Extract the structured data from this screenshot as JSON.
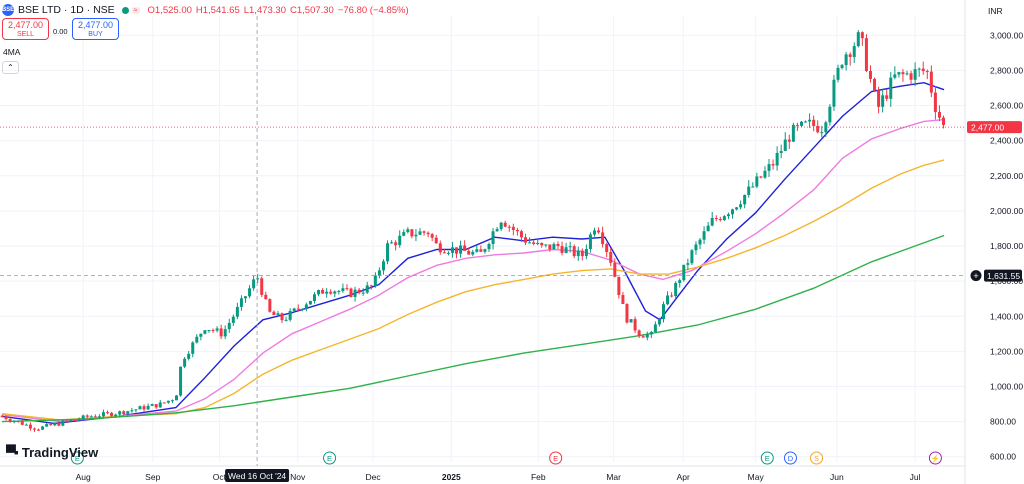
{
  "header": {
    "symbol": "BSE LTD · 1D · NSE",
    "open": "O1,525.00",
    "high": "H1,541.65",
    "low": "L1,473.30",
    "close": "C1,507.30",
    "change": "−76.80 (−4.85%)"
  },
  "trade": {
    "sell_price": "2,477.00",
    "sell_label": "SELL",
    "spread": "0.00",
    "buy_price": "2,477.00",
    "buy_label": "BUY"
  },
  "indicator_label": "4MA",
  "collapse_glyph": "⌃",
  "currency": "INR",
  "brand": "TradingView",
  "crosshair": {
    "date_label": "Wed 16 Oct '24",
    "price_label": "1,631.55",
    "price": 1631.55
  },
  "last_price_label": "2,477.00",
  "colors": {
    "up": "#089981",
    "down": "#f23645",
    "ma_blue": "#1d22d8",
    "ma_pink": "#f07be0",
    "ma_orange": "#f5b52e",
    "ma_green": "#2fb14a",
    "grid": "#f0f3fa"
  },
  "chart_data": {
    "type": "candlestick",
    "title": "",
    "ylim": [
      570,
      3110
    ],
    "y_ticks": [
      600,
      800,
      1000,
      1200,
      1400,
      1600,
      1800,
      2000,
      2200,
      2400,
      2600,
      2800,
      3000
    ],
    "y_tick_labels": [
      "600.00",
      "800.00",
      "1,000.00",
      "1,200.00",
      "1,400.00",
      "1,600.00",
      "1,800.00",
      "2,000.00",
      "2,200.00",
      "2,400.00",
      "2,600.00",
      "2,800.00",
      "3,000.00"
    ],
    "x_ticks": [
      {
        "day": 28,
        "label": "Aug"
      },
      {
        "day": 52,
        "label": "Sep"
      },
      {
        "day": 75,
        "label": "Oct"
      },
      {
        "day": 102,
        "label": "Nov"
      },
      {
        "day": 128,
        "label": "Dec"
      },
      {
        "day": 155,
        "label": "2025"
      },
      {
        "day": 185,
        "label": "Feb"
      },
      {
        "day": 211,
        "label": "Mar"
      },
      {
        "day": 235,
        "label": "Apr"
      },
      {
        "day": 260,
        "label": "May"
      },
      {
        "day": 288,
        "label": "Jun"
      },
      {
        "day": 315,
        "label": "Jul"
      }
    ],
    "crosshair_day": 88,
    "last_price": 2477,
    "events": [
      {
        "day": 26,
        "label": "E",
        "color": "#089981"
      },
      {
        "day": 113,
        "label": "E",
        "color": "#089981"
      },
      {
        "day": 191,
        "label": "E",
        "color": "#f23645"
      },
      {
        "day": 264,
        "label": "E",
        "color": "#089981"
      },
      {
        "day": 272,
        "label": "D",
        "color": "#2962ff"
      },
      {
        "day": 281,
        "label": "S",
        "color": "#f5a623"
      },
      {
        "day": 322,
        "label": "⚡",
        "color": "#9c27b0"
      }
    ],
    "price_path": [
      [
        0,
        830
      ],
      [
        12,
        760
      ],
      [
        20,
        790
      ],
      [
        30,
        830
      ],
      [
        40,
        850
      ],
      [
        55,
        900
      ],
      [
        60,
        940
      ],
      [
        62,
        1150
      ],
      [
        70,
        1340
      ],
      [
        76,
        1300
      ],
      [
        82,
        1460
      ],
      [
        88,
        1630
      ],
      [
        92,
        1420
      ],
      [
        97,
        1380
      ],
      [
        105,
        1480
      ],
      [
        112,
        1560
      ],
      [
        120,
        1530
      ],
      [
        128,
        1570
      ],
      [
        133,
        1800
      ],
      [
        140,
        1870
      ],
      [
        147,
        1880
      ],
      [
        150,
        1800
      ],
      [
        165,
        1750
      ],
      [
        172,
        1960
      ],
      [
        180,
        1840
      ],
      [
        186,
        1790
      ],
      [
        192,
        1800
      ],
      [
        200,
        1740
      ],
      [
        205,
        1940
      ],
      [
        210,
        1720
      ],
      [
        215,
        1400
      ],
      [
        220,
        1300
      ],
      [
        224,
        1290
      ],
      [
        228,
        1450
      ],
      [
        232,
        1560
      ],
      [
        238,
        1760
      ],
      [
        245,
        1940
      ],
      [
        252,
        2020
      ],
      [
        258,
        2120
      ],
      [
        266,
        2270
      ],
      [
        272,
        2440
      ],
      [
        278,
        2490
      ],
      [
        283,
        2480
      ],
      [
        290,
        2880
      ],
      [
        296,
        2990
      ],
      [
        302,
        2580
      ],
      [
        308,
        2760
      ],
      [
        313,
        2780
      ],
      [
        319,
        2800
      ],
      [
        322,
        2600
      ],
      [
        325,
        2470
      ]
    ],
    "days_total": 326,
    "ma_series": [
      {
        "key": "ma_blue",
        "points": [
          [
            0,
            830
          ],
          [
            18,
            790
          ],
          [
            40,
            830
          ],
          [
            60,
            880
          ],
          [
            70,
            1050
          ],
          [
            80,
            1230
          ],
          [
            90,
            1380
          ],
          [
            100,
            1420
          ],
          [
            120,
            1520
          ],
          [
            130,
            1580
          ],
          [
            140,
            1730
          ],
          [
            150,
            1780
          ],
          [
            160,
            1780
          ],
          [
            170,
            1850
          ],
          [
            180,
            1830
          ],
          [
            190,
            1850
          ],
          [
            200,
            1840
          ],
          [
            208,
            1850
          ],
          [
            215,
            1650
          ],
          [
            222,
            1430
          ],
          [
            227,
            1380
          ],
          [
            233,
            1510
          ],
          [
            240,
            1660
          ],
          [
            250,
            1840
          ],
          [
            260,
            1990
          ],
          [
            270,
            2180
          ],
          [
            280,
            2360
          ],
          [
            290,
            2540
          ],
          [
            300,
            2680
          ],
          [
            310,
            2710
          ],
          [
            318,
            2730
          ],
          [
            325,
            2690
          ]
        ]
      },
      {
        "key": "ma_pink",
        "points": [
          [
            0,
            840
          ],
          [
            20,
            800
          ],
          [
            40,
            830
          ],
          [
            60,
            860
          ],
          [
            70,
            930
          ],
          [
            80,
            1040
          ],
          [
            90,
            1190
          ],
          [
            100,
            1300
          ],
          [
            110,
            1370
          ],
          [
            120,
            1440
          ],
          [
            130,
            1520
          ],
          [
            140,
            1620
          ],
          [
            150,
            1690
          ],
          [
            160,
            1730
          ],
          [
            170,
            1750
          ],
          [
            180,
            1760
          ],
          [
            190,
            1780
          ],
          [
            200,
            1770
          ],
          [
            210,
            1720
          ],
          [
            220,
            1640
          ],
          [
            228,
            1610
          ],
          [
            238,
            1660
          ],
          [
            250,
            1770
          ],
          [
            260,
            1870
          ],
          [
            270,
            1990
          ],
          [
            280,
            2120
          ],
          [
            290,
            2300
          ],
          [
            300,
            2410
          ],
          [
            310,
            2470
          ],
          [
            318,
            2510
          ],
          [
            325,
            2520
          ]
        ]
      },
      {
        "key": "ma_orange",
        "points": [
          [
            0,
            845
          ],
          [
            20,
            810
          ],
          [
            40,
            830
          ],
          [
            60,
            845
          ],
          [
            70,
            880
          ],
          [
            80,
            960
          ],
          [
            90,
            1070
          ],
          [
            100,
            1150
          ],
          [
            110,
            1210
          ],
          [
            120,
            1270
          ],
          [
            130,
            1330
          ],
          [
            140,
            1410
          ],
          [
            150,
            1480
          ],
          [
            160,
            1540
          ],
          [
            170,
            1580
          ],
          [
            180,
            1610
          ],
          [
            190,
            1640
          ],
          [
            200,
            1660
          ],
          [
            210,
            1670
          ],
          [
            220,
            1640
          ],
          [
            230,
            1640
          ],
          [
            240,
            1680
          ],
          [
            250,
            1730
          ],
          [
            260,
            1790
          ],
          [
            270,
            1860
          ],
          [
            280,
            1940
          ],
          [
            290,
            2030
          ],
          [
            300,
            2130
          ],
          [
            310,
            2210
          ],
          [
            318,
            2260
          ],
          [
            325,
            2290
          ]
        ]
      },
      {
        "key": "ma_green",
        "points": [
          [
            0,
            800
          ],
          [
            30,
            815
          ],
          [
            60,
            850
          ],
          [
            80,
            890
          ],
          [
            100,
            940
          ],
          [
            120,
            990
          ],
          [
            140,
            1060
          ],
          [
            160,
            1130
          ],
          [
            180,
            1190
          ],
          [
            200,
            1240
          ],
          [
            220,
            1290
          ],
          [
            240,
            1350
          ],
          [
            260,
            1440
          ],
          [
            280,
            1560
          ],
          [
            300,
            1710
          ],
          [
            315,
            1800
          ],
          [
            325,
            1860
          ]
        ]
      }
    ]
  }
}
